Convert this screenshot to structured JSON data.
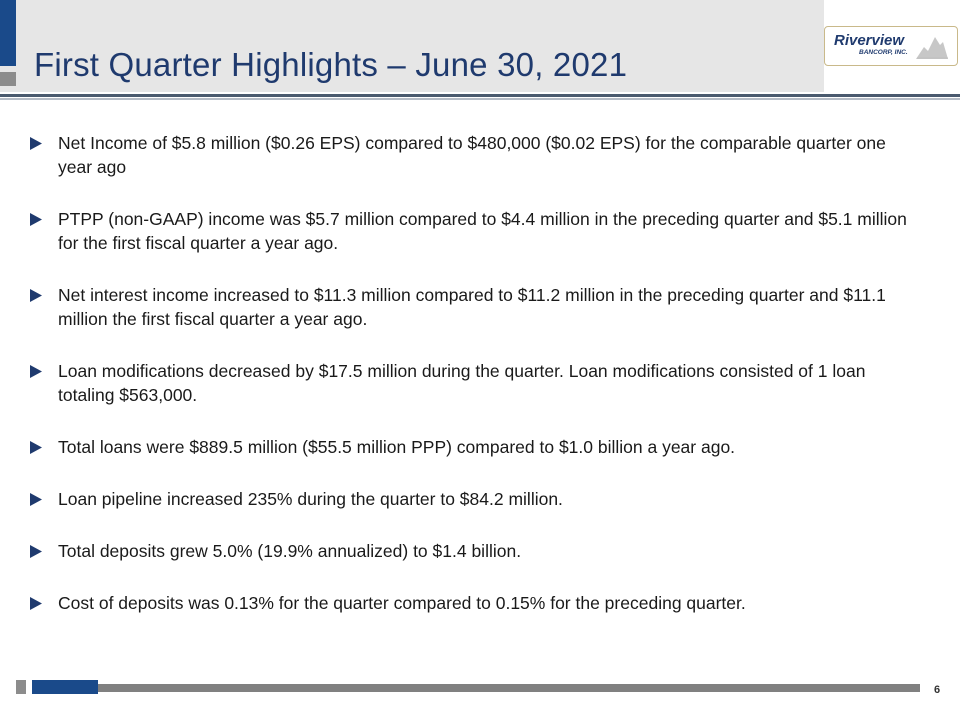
{
  "slide": {
    "title": "First Quarter Highlights – June 30, 2021",
    "page_number": "6"
  },
  "logo": {
    "name": "Riverview",
    "subtitle": "BANCORP, INC."
  },
  "colors": {
    "title": "#1f3a6e",
    "accent": "#1a4a8a",
    "header_band": "#e6e6e6",
    "bar_gray": "#808080"
  },
  "icons": {
    "bullet": "triangle-right-icon",
    "logo_mark": "mountain-icon"
  },
  "bullets": [
    "Net Income of $5.8 million ($0.26 EPS) compared to $480,000 ($0.02 EPS) for the comparable quarter one year ago",
    "PTPP (non-GAAP) income was $5.7 million compared to $4.4 million in the preceding quarter and $5.1 million for the first fiscal quarter a year ago.",
    "Net interest income increased to $11.3 million compared to $11.2 million in the preceding quarter and $11.1 million the first fiscal quarter a year ago.",
    "Loan modifications decreased by $17.5 million during the quarter. Loan modifications consisted of 1 loan totaling $563,000.",
    "Total loans were $889.5 million ($55.5 million PPP) compared to $1.0 billion a year ago.",
    "Loan pipeline increased 235% during the quarter to $84.2 million.",
    "Total deposits grew 5.0% (19.9% annualized) to $1.4 billion.",
    "Cost of deposits was 0.13% for the quarter compared to 0.15% for the preceding quarter."
  ]
}
